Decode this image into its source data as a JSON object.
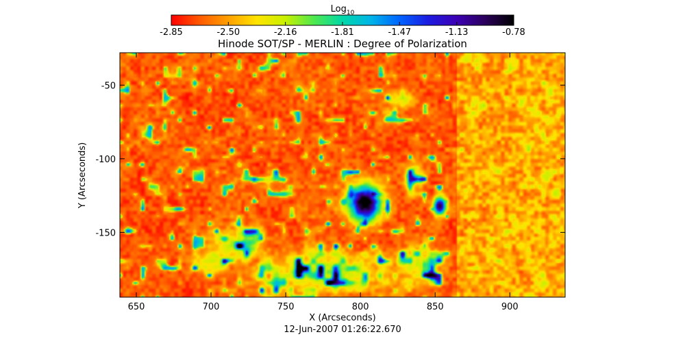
{
  "chart_data": {
    "type": "heatmap",
    "title": "Hinode SOT/SP - MERLIN : Degree of Polarization",
    "xlabel": "X (Arcseconds)",
    "ylabel": "Y (Arcseconds)",
    "footer": "12-Jun-2007 01:26:22.670",
    "xlim": [
      639,
      937
    ],
    "ylim": [
      -194,
      -28
    ],
    "x_ticks": [
      650,
      700,
      750,
      800,
      850,
      900
    ],
    "y_ticks": [
      -50,
      -100,
      -150
    ],
    "colorbar": {
      "label_base": "Log",
      "label_sub": "10",
      "range": [
        -2.85,
        -0.78
      ],
      "ticks": [
        "-2.85",
        "-2.50",
        "-2.16",
        "-1.81",
        "-1.47",
        "-1.13",
        "-0.78"
      ],
      "stops": [
        "#ff0000",
        "#ff5a00",
        "#ffa000",
        "#ffe400",
        "#c8f000",
        "#4ee84e",
        "#00d8a8",
        "#00b4e8",
        "#0064ff",
        "#1c1ce0",
        "#3c00b4",
        "#2a005a",
        "#000000"
      ]
    },
    "features": [
      {
        "name": "sunspot",
        "x": 803,
        "y": -130,
        "rx": 12,
        "ry": 14,
        "peak": -0.8
      },
      {
        "name": "pore",
        "x": 853,
        "y": -132,
        "rx": 5,
        "ry": 7,
        "peak": -1.05
      },
      {
        "name": "plage",
        "x": 775,
        "y": -178,
        "rx": 45,
        "ry": 14,
        "peak": -1.3
      },
      {
        "name": "plage",
        "x": 718,
        "y": -158,
        "rx": 18,
        "ry": 12,
        "peak": -1.4
      },
      {
        "name": "plage",
        "x": 700,
        "y": -170,
        "rx": 12,
        "ry": 8,
        "peak": -1.7
      },
      {
        "name": "network",
        "x": 827,
        "y": -60,
        "rx": 10,
        "ry": 6,
        "peak": -1.5
      },
      {
        "name": "network",
        "x": 836,
        "y": -113,
        "rx": 7,
        "ry": 10,
        "peak": -1.5
      },
      {
        "name": "network",
        "x": 840,
        "y": -172,
        "rx": 16,
        "ry": 14,
        "peak": -1.5
      }
    ]
  }
}
